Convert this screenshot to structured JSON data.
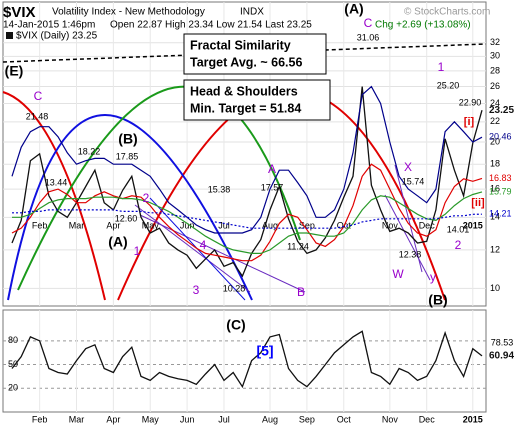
{
  "header": {
    "symbol": "$VIX",
    "name": "Volatility Index - New Methodology",
    "exchange": "INDX",
    "watermark": "© StockCharts.com",
    "datetime": "14-Jan-2015 1:46pm",
    "quote": "Open 22.87 High 23.34 Low 21.54 Last 23.25",
    "change": "Chg +2.69 (+13.08%)",
    "legend": "$VIX (Daily) 23.25"
  },
  "boxes": [
    {
      "lines": [
        "Fractal Similarity",
        "Target Avg. ~ 66.56"
      ]
    },
    {
      "lines": [
        "Head & Shoulders",
        "Min. Target = 51.84"
      ]
    }
  ],
  "chart_data": [
    {
      "type": "line",
      "log_scale": true,
      "grid": true,
      "categories": [
        null,
        null,
        null,
        "Feb",
        null,
        null,
        null,
        "Mar",
        null,
        null,
        null,
        "Apr",
        null,
        null,
        null,
        "May",
        null,
        null,
        null,
        "Jun",
        null,
        null,
        null,
        "Jul",
        null,
        null,
        null,
        null,
        "Aug",
        null,
        null,
        null,
        "Sep",
        null,
        null,
        null,
        "Oct",
        null,
        null,
        null,
        null,
        "Nov",
        null,
        null,
        null,
        "Dec",
        null,
        null,
        null,
        null,
        "2015",
        null
      ],
      "series": [
        {
          "color": "#111111",
          "last_label": true,
          "values": [
            12.4,
            13.8,
            18.3,
            18.9,
            15.5,
            14.4,
            14.0,
            15.0,
            16.2,
            17.5,
            15.0,
            14.5,
            15.9,
            17.0,
            14.0,
            13.0,
            13.3,
            12.4,
            12.0,
            11.7,
            11.0,
            11.5,
            12.0,
            11.1,
            11.3,
            10.6,
            11.8,
            12.6,
            14.5,
            16.2,
            13.9,
            12.5,
            11.8,
            12.0,
            12.7,
            13.8,
            15.4,
            17.0,
            26.0,
            16.3,
            14.5,
            13.1,
            13.3,
            13.0,
            12.4,
            12.5,
            14.5,
            20.3,
            17.5,
            15.5,
            19.9,
            23.25
          ]
        },
        {
          "color": "#00008b",
          "last_label": true,
          "values": [
            17.0,
            19.5,
            21.0,
            21.5,
            21.5,
            20.5,
            19.0,
            18.0,
            18.3,
            18.5,
            18.5,
            18.0,
            18.0,
            18.0,
            17.5,
            17.0,
            16.0,
            15.0,
            14.5,
            14.0,
            13.5,
            13.2,
            13.0,
            13.0,
            13.0,
            13.0,
            13.2,
            14.0,
            16.0,
            17.5,
            17.5,
            16.5,
            15.5,
            14.0,
            14.0,
            14.5,
            16.0,
            19.0,
            25.0,
            26.0,
            24.0,
            20.0,
            17.0,
            16.0,
            15.5,
            15.0,
            16.0,
            21.0,
            22.0,
            21.0,
            20.0,
            20.46
          ]
        },
        {
          "color": "#e00000",
          "last_label": true,
          "values": [
            13.0,
            13.3,
            14.0,
            15.0,
            15.8,
            16.0,
            15.6,
            15.0,
            15.0,
            15.5,
            15.8,
            15.5,
            15.3,
            15.5,
            15.4,
            14.8,
            14.0,
            13.4,
            12.9,
            12.5,
            12.1,
            11.8,
            11.7,
            11.6,
            11.5,
            11.4,
            11.4,
            11.7,
            12.5,
            13.6,
            14.2,
            14.0,
            13.2,
            12.4,
            12.2,
            12.6,
            13.4,
            14.8,
            17.0,
            18.0,
            17.5,
            16.0,
            14.6,
            13.6,
            13.0,
            12.8,
            13.2,
            15.0,
            16.2,
            16.8,
            16.6,
            16.83
          ]
        },
        {
          "color": "#2a9a2a",
          "last_label": true,
          "values": [
            14.0,
            14.0,
            14.2,
            14.6,
            15.0,
            15.2,
            15.3,
            15.3,
            15.3,
            15.4,
            15.4,
            15.4,
            15.3,
            15.3,
            15.2,
            15.0,
            14.7,
            14.4,
            14.0,
            13.6,
            13.2,
            12.8,
            12.5,
            12.2,
            12.0,
            11.9,
            11.8,
            11.8,
            12.0,
            12.4,
            12.8,
            13.0,
            13.0,
            12.9,
            12.8,
            12.8,
            13.0,
            13.6,
            14.5,
            15.2,
            15.5,
            15.4,
            15.0,
            14.6,
            14.2,
            13.9,
            13.8,
            14.2,
            14.8,
            15.3,
            15.6,
            15.79
          ]
        },
        {
          "color": "#0000cc",
          "dashed": true,
          "last_label": true,
          "values": [
            14.3,
            14.3,
            14.4,
            14.4,
            14.5,
            14.5,
            14.5,
            14.5,
            14.5,
            14.5,
            14.5,
            14.5,
            14.4,
            14.4,
            14.4,
            14.3,
            14.3,
            14.2,
            14.1,
            14.0,
            13.9,
            13.8,
            13.7,
            13.6,
            13.5,
            13.4,
            13.3,
            13.3,
            13.3,
            13.3,
            13.3,
            13.3,
            13.3,
            13.3,
            13.3,
            13.3,
            13.4,
            13.5,
            13.7,
            13.8,
            13.9,
            13.9,
            13.9,
            13.9,
            13.9,
            13.9,
            13.9,
            14.0,
            14.1,
            14.1,
            14.2,
            14.21
          ]
        }
      ],
      "ylim": [
        9.2,
        38.8
      ],
      "yticks": [
        10,
        12,
        14,
        16,
        18,
        20,
        22,
        24,
        26,
        28,
        30,
        32
      ],
      "annotations": [
        {
          "text": "(E)",
          "color": "#000000"
        },
        {
          "text": "C",
          "color": "#9900cc"
        },
        {
          "text": "21.48",
          "color": "#000000"
        },
        {
          "text": "13.44",
          "color": "#000000"
        },
        {
          "text": "18.22",
          "color": "#000000"
        },
        {
          "text": "(B)",
          "color": "#000000"
        },
        {
          "text": "17.85",
          "color": "#000000"
        },
        {
          "text": "12.60",
          "color": "#000000"
        },
        {
          "text": "(A)",
          "color": "#000000"
        },
        {
          "text": "1",
          "color": "#9900cc"
        },
        {
          "text": "2",
          "color": "#9900cc"
        },
        {
          "text": "4",
          "color": "#9900cc"
        },
        {
          "text": "3",
          "color": "#9900cc"
        },
        {
          "text": "10.28",
          "color": "#000000"
        },
        {
          "text": "15.38",
          "color": "#000000"
        },
        {
          "text": "17.57",
          "color": "#000000"
        },
        {
          "text": "A",
          "color": "#9900cc"
        },
        {
          "text": "11.24",
          "color": "#000000"
        },
        {
          "text": "B",
          "color": "#9900cc"
        },
        {
          "text": "(A)",
          "color": "#000000"
        },
        {
          "text": "C",
          "color": "#9900cc"
        },
        {
          "text": "31.06",
          "color": "#000000"
        },
        {
          "text": "X",
          "color": "#9900cc"
        },
        {
          "text": "15.74",
          "color": "#000000"
        },
        {
          "text": "12.38",
          "color": "#000000"
        },
        {
          "text": "W",
          "color": "#9900cc"
        },
        {
          "text": "y",
          "color": "#9900cc"
        },
        {
          "text": "1",
          "color": "#9900cc"
        },
        {
          "text": "25.20",
          "color": "#000000"
        },
        {
          "text": "22.90",
          "color": "#000000"
        },
        {
          "text": "[i]",
          "color": "#e00000"
        },
        {
          "text": "[ii]",
          "color": "#e00000"
        },
        {
          "text": "14.01",
          "color": "#000000"
        },
        {
          "text": "2",
          "color": "#9900cc"
        },
        {
          "text": "(B)",
          "color": "#000000"
        }
      ]
    },
    {
      "type": "line",
      "grid": true,
      "categories": [
        null,
        null,
        null,
        "Feb",
        null,
        null,
        null,
        "Mar",
        null,
        null,
        null,
        "Apr",
        null,
        null,
        null,
        "May",
        null,
        null,
        null,
        "Jun",
        null,
        null,
        null,
        "Jul",
        null,
        null,
        null,
        null,
        "Aug",
        null,
        null,
        null,
        "Sep",
        null,
        null,
        null,
        "Oct",
        null,
        null,
        null,
        null,
        "Nov",
        null,
        null,
        null,
        "Dec",
        null,
        null,
        null,
        null,
        "2015",
        null
      ],
      "series": [
        {
          "color": "#111111",
          "last_label": true,
          "values": [
            45,
            60,
            85,
            80,
            45,
            40,
            38,
            55,
            70,
            75,
            45,
            40,
            60,
            72,
            35,
            30,
            40,
            35,
            32,
            30,
            25,
            38,
            50,
            30,
            40,
            22,
            55,
            65,
            85,
            88,
            45,
            30,
            22,
            35,
            50,
            65,
            75,
            85,
            92,
            40,
            35,
            25,
            45,
            40,
            30,
            35,
            55,
            90,
            55,
            35,
            70,
            60.94
          ]
        }
      ],
      "ylim": [
        -10,
        119
      ],
      "yticks": [
        20,
        50,
        80
      ],
      "annotations": [
        {
          "text": "(C)",
          "color": "#000000"
        },
        {
          "text": "[5]",
          "color": "#0000ff"
        },
        {
          "text": "78.53",
          "color": "#000000"
        }
      ]
    }
  ]
}
